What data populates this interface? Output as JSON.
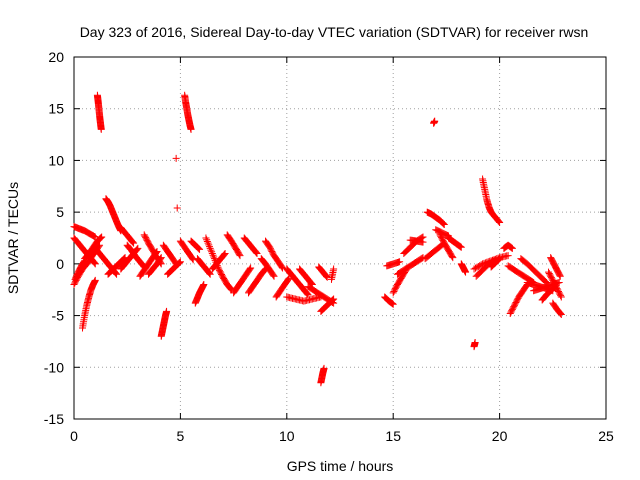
{
  "chart_data": {
    "type": "scatter",
    "title": "Day 323 of 2016, Sidereal Day-to-day VTEC variation (SDTVAR) for receiver rwsn",
    "xlabel": "GPS time / hours",
    "ylabel": "SDTVAR / TECUs",
    "xlim": [
      0,
      25
    ],
    "ylim": [
      -15,
      20
    ],
    "xticks": [
      0,
      5,
      10,
      15,
      20,
      25
    ],
    "yticks": [
      -15,
      -10,
      -5,
      0,
      5,
      10,
      15,
      20
    ],
    "grid": true,
    "marker": "+",
    "color": "#ff0000",
    "segments": [
      {
        "x": [
          0.0,
          0.25,
          0.5,
          0.75,
          1.0
        ],
        "y": [
          3.6,
          3.4,
          3.2,
          2.9,
          2.6
        ]
      },
      {
        "x": [
          0.0,
          0.2,
          0.4,
          0.6,
          0.8,
          1.0,
          1.2
        ],
        "y": [
          -2.0,
          -1.2,
          -0.5,
          0.0,
          0.6,
          1.2,
          1.8
        ]
      },
      {
        "x": [
          0.0,
          0.2,
          0.4,
          0.6,
          0.8,
          1.0
        ],
        "y": [
          2.5,
          2.0,
          1.5,
          1.0,
          0.5,
          0.0
        ]
      },
      {
        "x": [
          0.05,
          0.2,
          0.35,
          0.5
        ],
        "y": [
          -1.5,
          -0.8,
          -0.2,
          0.3
        ]
      },
      {
        "x": [
          0.4,
          0.5,
          0.6,
          0.7,
          0.8,
          0.9,
          1.0
        ],
        "y": [
          -6.2,
          -5.0,
          -4.0,
          -3.2,
          -2.5,
          -2.0,
          -1.6
        ]
      },
      {
        "x": [
          0.5,
          0.7,
          0.9,
          1.1,
          1.3
        ],
        "y": [
          0.5,
          1.0,
          1.6,
          2.2,
          2.6
        ]
      },
      {
        "x": [
          1.1,
          1.13,
          1.16,
          1.19,
          1.22,
          1.25,
          1.28
        ],
        "y": [
          16.3,
          15.8,
          15.2,
          14.6,
          14.0,
          13.5,
          13.0
        ]
      },
      {
        "x": [
          1.0,
          1.2,
          1.4,
          1.6,
          1.8,
          2.0
        ],
        "y": [
          1.5,
          1.0,
          0.5,
          0.0,
          -0.5,
          -1.0
        ]
      },
      {
        "x": [
          1.5,
          1.6,
          1.7,
          1.8,
          1.9,
          2.0,
          2.1,
          2.2
        ],
        "y": [
          6.3,
          6.0,
          5.6,
          5.1,
          4.6,
          4.1,
          3.6,
          3.2
        ]
      },
      {
        "x": [
          1.6,
          1.8,
          2.0,
          2.2,
          2.4
        ],
        "y": [
          -1.0,
          -0.6,
          -0.2,
          0.2,
          0.6
        ]
      },
      {
        "x": [
          2.2,
          2.4,
          2.6,
          2.8
        ],
        "y": [
          3.5,
          3.0,
          2.5,
          2.0
        ]
      },
      {
        "x": [
          2.2,
          2.4,
          2.6,
          2.8,
          3.0
        ],
        "y": [
          -0.5,
          0.0,
          0.5,
          1.0,
          1.5
        ]
      },
      {
        "x": [
          2.5,
          2.7,
          2.9,
          3.1,
          3.3
        ],
        "y": [
          1.8,
          1.3,
          0.7,
          0.2,
          -0.3
        ]
      },
      {
        "x": [
          3.1,
          3.3,
          3.5,
          3.7,
          3.9
        ],
        "y": [
          -1.2,
          -0.6,
          0.0,
          0.6,
          1.2
        ]
      },
      {
        "x": [
          3.3,
          3.5,
          3.7,
          3.9,
          4.1
        ],
        "y": [
          2.8,
          2.0,
          1.3,
          0.6,
          0.0
        ]
      },
      {
        "x": [
          3.5,
          3.7,
          3.9,
          4.1
        ],
        "y": [
          -1.0,
          -0.5,
          0.0,
          0.6
        ]
      },
      {
        "x": [
          4.1,
          4.15,
          4.2,
          4.25,
          4.3,
          4.35
        ],
        "y": [
          -7.0,
          -6.5,
          -6.0,
          -5.5,
          -5.0,
          -4.6
        ]
      },
      {
        "x": [
          4.2,
          4.4,
          4.6,
          4.8
        ],
        "y": [
          1.8,
          1.2,
          0.6,
          0.0
        ]
      },
      {
        "x": [
          4.4,
          4.6,
          4.8,
          5.0
        ],
        "y": [
          -1.0,
          -0.6,
          -0.2,
          0.2
        ]
      },
      {
        "x": [
          4.8
        ],
        "y": [
          10.2
        ]
      },
      {
        "x": [
          4.85
        ],
        "y": [
          5.4
        ]
      },
      {
        "x": [
          5.0,
          5.2,
          5.4,
          5.6
        ],
        "y": [
          2.2,
          1.6,
          1.0,
          0.4
        ]
      },
      {
        "x": [
          5.2,
          5.25,
          5.3,
          5.35,
          5.4,
          5.45,
          5.5
        ],
        "y": [
          16.3,
          15.6,
          15.0,
          14.4,
          13.9,
          13.4,
          13.0
        ]
      },
      {
        "x": [
          5.5,
          5.7,
          5.9
        ],
        "y": [
          2.2,
          1.8,
          1.4
        ]
      },
      {
        "x": [
          5.7,
          5.8,
          5.9,
          6.0,
          6.1
        ],
        "y": [
          -3.8,
          -3.3,
          -2.8,
          -2.4,
          -2.0
        ]
      },
      {
        "x": [
          5.8,
          6.0,
          6.2,
          6.4
        ],
        "y": [
          0.5,
          0.0,
          -0.5,
          -1.0
        ]
      },
      {
        "x": [
          6.2,
          6.4,
          6.6,
          6.8,
          7.0,
          7.2,
          7.4
        ],
        "y": [
          2.5,
          1.5,
          0.5,
          -0.5,
          -1.3,
          -2.0,
          -2.5
        ]
      },
      {
        "x": [
          6.5,
          6.7,
          6.9,
          7.1
        ],
        "y": [
          -0.5,
          0.0,
          0.5,
          1.0
        ]
      },
      {
        "x": [
          7.2,
          7.4,
          7.6,
          7.8
        ],
        "y": [
          2.8,
          2.2,
          1.5,
          0.8
        ]
      },
      {
        "x": [
          7.5,
          7.7,
          7.9,
          8.1,
          8.3
        ],
        "y": [
          -2.8,
          -2.2,
          -1.6,
          -1.0,
          -0.4
        ]
      },
      {
        "x": [
          8.0,
          8.2,
          8.4,
          8.6
        ],
        "y": [
          2.5,
          2.0,
          1.5,
          1.0
        ]
      },
      {
        "x": [
          8.2,
          8.4,
          8.6,
          8.8,
          9.0
        ],
        "y": [
          -2.8,
          -2.2,
          -1.6,
          -1.0,
          -0.5
        ]
      },
      {
        "x": [
          8.8,
          9.0,
          9.2,
          9.4
        ],
        "y": [
          0.5,
          0.0,
          -0.6,
          -1.2
        ]
      },
      {
        "x": [
          9.0,
          9.2,
          9.4,
          9.6,
          9.8
        ],
        "y": [
          2.2,
          1.6,
          0.8,
          0.2,
          -0.4
        ]
      },
      {
        "x": [
          9.5,
          9.7,
          9.9,
          10.1
        ],
        "y": [
          -3.2,
          -2.6,
          -2.0,
          -1.4
        ]
      },
      {
        "x": [
          10.0,
          10.2,
          10.4,
          10.6,
          10.8,
          11.0
        ],
        "y": [
          -0.5,
          -1.0,
          -1.5,
          -2.0,
          -2.5,
          -3.0
        ]
      },
      {
        "x": [
          10.0,
          10.4,
          10.8,
          11.2,
          11.6
        ],
        "y": [
          -3.2,
          -3.4,
          -3.6,
          -3.4,
          -3.2
        ]
      },
      {
        "x": [
          10.6,
          10.8,
          11.0,
          11.2
        ],
        "y": [
          -0.5,
          -1.0,
          -1.5,
          -2.0
        ]
      },
      {
        "x": [
          11.0,
          11.3,
          11.6,
          11.9,
          12.2
        ],
        "y": [
          -2.2,
          -2.6,
          -3.0,
          -3.4,
          -3.8
        ]
      },
      {
        "x": [
          11.6,
          11.8,
          12.0,
          12.2
        ],
        "y": [
          -4.6,
          -4.2,
          -3.8,
          -3.4
        ]
      },
      {
        "x": [
          11.6,
          11.65,
          11.7,
          11.75
        ],
        "y": [
          -11.5,
          -11.0,
          -10.5,
          -10.1
        ]
      },
      {
        "x": [
          11.5,
          11.7,
          11.9
        ],
        "y": [
          -0.3,
          -0.8,
          -1.3
        ]
      },
      {
        "x": [
          12.1,
          12.2
        ],
        "y": [
          -1.5,
          -0.5
        ]
      },
      {
        "x": [
          14.6,
          14.8,
          15.0
        ],
        "y": [
          -3.2,
          -3.6,
          -3.9
        ]
      },
      {
        "x": [
          14.7,
          15.0,
          15.3
        ],
        "y": [
          -0.2,
          0.0,
          0.2
        ]
      },
      {
        "x": [
          15.0,
          15.2,
          15.4,
          15.6
        ],
        "y": [
          -2.8,
          -2.0,
          -1.3,
          -0.6
        ]
      },
      {
        "x": [
          15.2,
          15.5,
          15.8,
          16.1,
          16.4
        ],
        "y": [
          -1.0,
          -0.6,
          -0.2,
          0.2,
          0.6
        ]
      },
      {
        "x": [
          15.5,
          15.8,
          16.1,
          16.4
        ],
        "y": [
          1.0,
          1.6,
          2.2,
          2.6
        ]
      },
      {
        "x": [
          15.8,
          16.1,
          16.4
        ],
        "y": [
          2.3,
          2.2,
          2.1
        ]
      },
      {
        "x": [
          16.6,
          16.8,
          17.0,
          17.2,
          17.4
        ],
        "y": [
          5.0,
          4.8,
          4.5,
          4.2,
          3.8
        ]
      },
      {
        "x": [
          16.5,
          16.8,
          17.1,
          17.4
        ],
        "y": [
          0.5,
          1.0,
          1.5,
          2.0
        ]
      },
      {
        "x": [
          16.9,
          16.95
        ],
        "y": [
          13.6,
          13.8
        ]
      },
      {
        "x": [
          17.2,
          17.4,
          17.6,
          17.8
        ],
        "y": [
          2.8,
          2.0,
          1.3,
          0.6
        ]
      },
      {
        "x": [
          17.6,
          17.8,
          18.0,
          18.2
        ],
        "y": [
          2.5,
          2.2,
          1.9,
          1.6
        ]
      },
      {
        "x": [
          17.0,
          17.3,
          17.6
        ],
        "y": [
          3.3,
          3.0,
          2.7
        ]
      },
      {
        "x": [
          18.2,
          18.3,
          18.4
        ],
        "y": [
          0.0,
          -0.4,
          -0.8
        ]
      },
      {
        "x": [
          18.8,
          18.85
        ],
        "y": [
          -8.0,
          -7.6
        ]
      },
      {
        "x": [
          18.8,
          19.2,
          19.6,
          20.0,
          20.4
        ],
        "y": [
          -0.5,
          0.0,
          0.3,
          0.6,
          0.8
        ]
      },
      {
        "x": [
          18.9,
          19.2,
          19.5,
          19.8
        ],
        "y": [
          -1.2,
          -0.6,
          0.0,
          0.4
        ]
      },
      {
        "x": [
          19.2,
          19.3,
          19.4,
          19.5,
          19.6,
          19.8,
          20.0
        ],
        "y": [
          8.2,
          7.2,
          6.2,
          5.5,
          5.0,
          4.5,
          4.0
        ]
      },
      {
        "x": [
          19.6,
          19.8,
          20.0
        ],
        "y": [
          -0.3,
          0.1,
          0.5
        ]
      },
      {
        "x": [
          20.2,
          20.4,
          20.6
        ],
        "y": [
          1.5,
          1.8,
          1.5
        ]
      },
      {
        "x": [
          20.5,
          20.7,
          20.9,
          21.1,
          21.3
        ],
        "y": [
          -4.8,
          -4.0,
          -3.2,
          -2.6,
          -2.0
        ]
      },
      {
        "x": [
          20.4,
          20.7,
          21.0,
          21.3,
          21.6
        ],
        "y": [
          -0.2,
          -0.6,
          -1.0,
          -1.4,
          -1.8
        ]
      },
      {
        "x": [
          21.0,
          21.3,
          21.6,
          21.9,
          22.2
        ],
        "y": [
          0.5,
          0.0,
          -0.6,
          -1.2,
          -1.8
        ]
      },
      {
        "x": [
          21.3,
          21.6,
          21.9,
          22.2,
          22.5
        ],
        "y": [
          -1.8,
          -2.0,
          -2.2,
          -2.4,
          -2.6
        ]
      },
      {
        "x": [
          21.6,
          21.9,
          22.2,
          22.5,
          22.8
        ],
        "y": [
          -2.6,
          -2.4,
          -2.2,
          -2.0,
          -1.8
        ]
      },
      {
        "x": [
          22.0,
          22.2,
          22.4,
          22.6
        ],
        "y": [
          -3.5,
          -3.0,
          -2.6,
          -2.2
        ]
      },
      {
        "x": [
          22.3,
          22.5,
          22.7,
          22.9
        ],
        "y": [
          -0.8,
          -1.6,
          -2.4,
          -3.2
        ]
      },
      {
        "x": [
          22.4,
          22.55,
          22.7,
          22.85
        ],
        "y": [
          0.6,
          0.0,
          -0.6,
          -1.2
        ]
      },
      {
        "x": [
          22.5,
          22.7,
          22.9
        ],
        "y": [
          -3.8,
          -4.4,
          -4.9
        ]
      }
    ]
  }
}
